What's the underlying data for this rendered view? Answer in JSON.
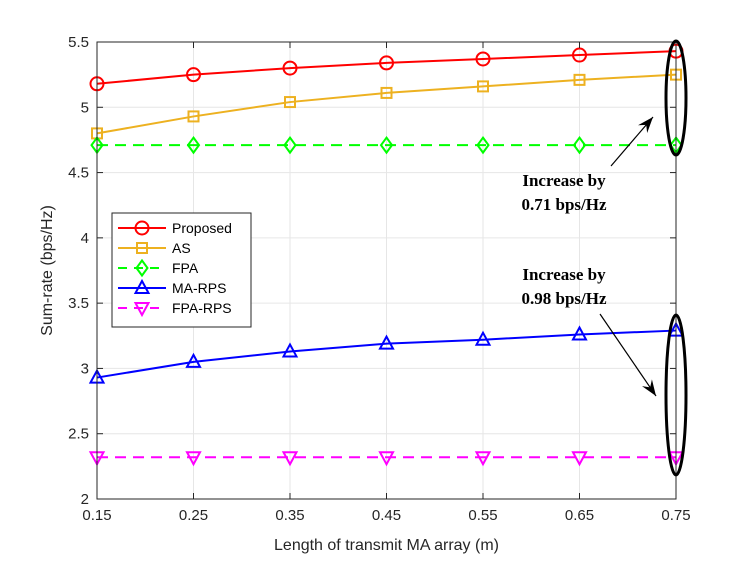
{
  "chart_data": {
    "type": "line",
    "title": "",
    "xlabel": "Length of transmit MA array (m)",
    "ylabel": "Sum-rate (bps/Hz)",
    "x": [
      0.15,
      0.25,
      0.35,
      0.45,
      0.55,
      0.65,
      0.75
    ],
    "xlim": [
      0.15,
      0.75
    ],
    "ylim": [
      2,
      5.5
    ],
    "xticks": [
      "0.15",
      "0.25",
      "0.35",
      "0.45",
      "0.55",
      "0.65",
      "0.75"
    ],
    "yticks": [
      "2",
      "2.5",
      "3",
      "3.5",
      "4",
      "4.5",
      "5",
      "5.5"
    ],
    "grid": true,
    "legend_position": "middle-left",
    "series": [
      {
        "name": "Proposed",
        "color": "#ff0000",
        "dash": "solid",
        "marker": "circle",
        "values": [
          5.18,
          5.25,
          5.3,
          5.34,
          5.37,
          5.4,
          5.43
        ]
      },
      {
        "name": "AS",
        "color": "#edb120",
        "dash": "solid",
        "marker": "square",
        "values": [
          4.8,
          4.93,
          5.04,
          5.11,
          5.16,
          5.21,
          5.25
        ]
      },
      {
        "name": "FPA",
        "color": "#00ff00",
        "dash": "dashed",
        "marker": "diamond",
        "values": [
          4.71,
          4.71,
          4.71,
          4.71,
          4.71,
          4.71,
          4.71
        ]
      },
      {
        "name": "MA-RPS",
        "color": "#0000ff",
        "dash": "solid",
        "marker": "triangle-up",
        "values": [
          2.93,
          3.05,
          3.13,
          3.19,
          3.22,
          3.26,
          3.29
        ]
      },
      {
        "name": "FPA-RPS",
        "color": "#ff00ff",
        "dash": "dashed",
        "marker": "triangle-down",
        "values": [
          2.32,
          2.32,
          2.32,
          2.32,
          2.32,
          2.32,
          2.32
        ]
      }
    ],
    "annotations": [
      {
        "lines": [
          "Increase by",
          "0.71 bps/Hz"
        ],
        "x": 0.75,
        "y_range": [
          4.71,
          5.43
        ]
      },
      {
        "lines": [
          "Increase by",
          "0.98 bps/Hz"
        ],
        "x": 0.75,
        "y_range": [
          2.32,
          3.29
        ]
      }
    ]
  }
}
